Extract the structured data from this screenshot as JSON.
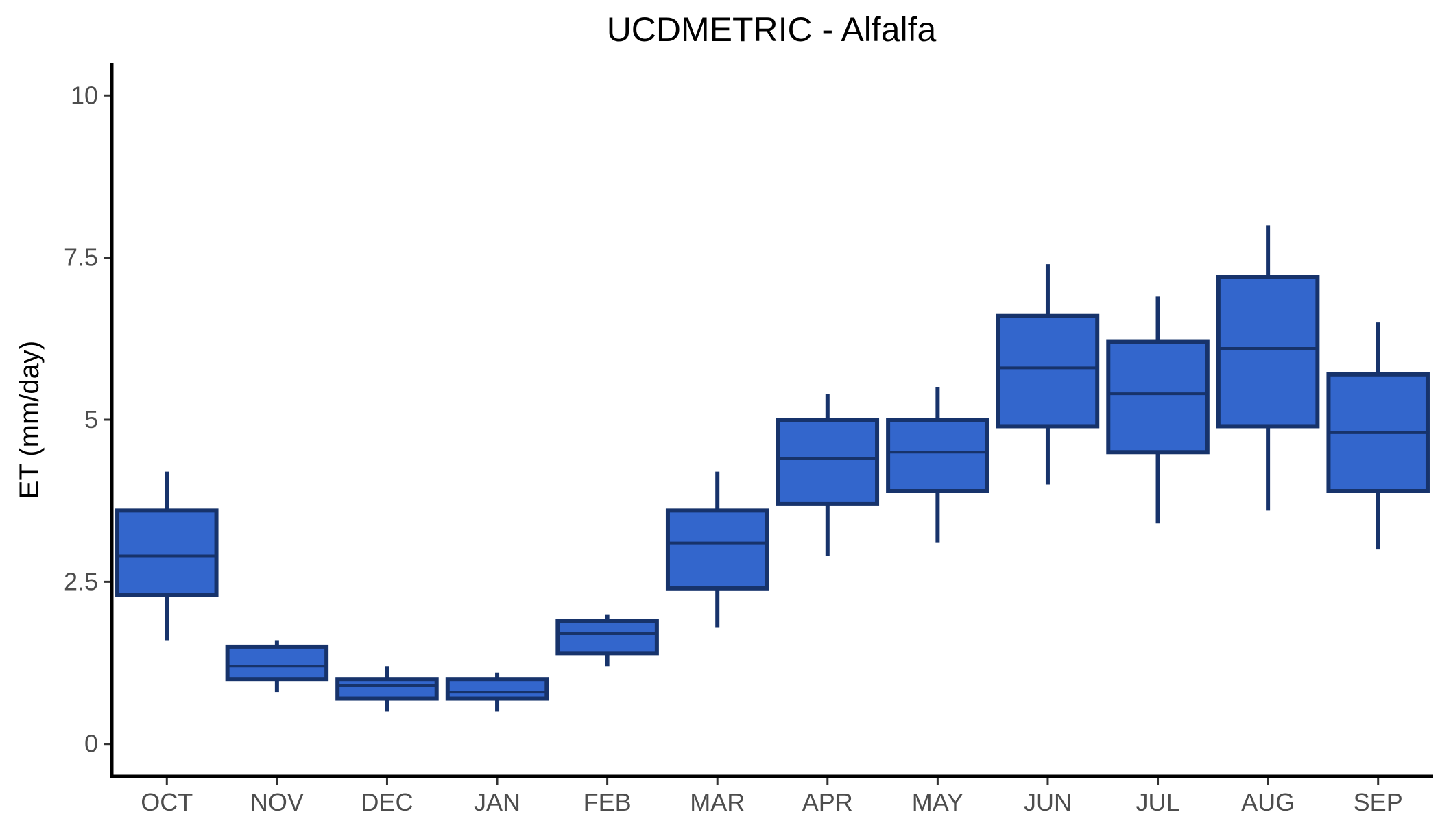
{
  "chart_data": {
    "type": "boxplot",
    "title": "UCDMETRIC - Alfalfa",
    "xlabel": "",
    "ylabel": "ET (mm/day)",
    "ylim": [
      -0.5,
      10.5
    ],
    "yticks": [
      0,
      2.5,
      5,
      7.5,
      10
    ],
    "ytick_labels": [
      "0",
      "2.5",
      "5",
      "7.5",
      "10"
    ],
    "categories": [
      "OCT",
      "NOV",
      "DEC",
      "JAN",
      "FEB",
      "MAR",
      "APR",
      "MAY",
      "JUN",
      "JUL",
      "AUG",
      "SEP"
    ],
    "boxes": [
      {
        "min": 1.6,
        "q1": 2.3,
        "median": 2.9,
        "q3": 3.6,
        "max": 4.2
      },
      {
        "min": 0.8,
        "q1": 1.0,
        "median": 1.2,
        "q3": 1.5,
        "max": 1.6
      },
      {
        "min": 0.5,
        "q1": 0.7,
        "median": 0.9,
        "q3": 1.0,
        "max": 1.2
      },
      {
        "min": 0.5,
        "q1": 0.7,
        "median": 0.8,
        "q3": 1.0,
        "max": 1.1
      },
      {
        "min": 1.2,
        "q1": 1.4,
        "median": 1.7,
        "q3": 1.9,
        "max": 2.0
      },
      {
        "min": 1.8,
        "q1": 2.4,
        "median": 3.1,
        "q3": 3.6,
        "max": 4.2
      },
      {
        "min": 2.9,
        "q1": 3.7,
        "median": 4.4,
        "q3": 5.0,
        "max": 5.4
      },
      {
        "min": 3.1,
        "q1": 3.9,
        "median": 4.5,
        "q3": 5.0,
        "max": 5.5
      },
      {
        "min": 4.0,
        "q1": 4.9,
        "median": 5.8,
        "q3": 6.6,
        "max": 7.4
      },
      {
        "min": 3.4,
        "q1": 4.5,
        "median": 5.4,
        "q3": 6.2,
        "max": 6.9
      },
      {
        "min": 3.6,
        "q1": 4.9,
        "median": 6.1,
        "q3": 7.2,
        "max": 8.0
      },
      {
        "min": 3.0,
        "q1": 3.9,
        "median": 4.8,
        "q3": 5.7,
        "max": 6.5
      }
    ],
    "box_fill": "#3366cc",
    "box_stroke": "#17336b",
    "grid": false,
    "legend": "none"
  }
}
